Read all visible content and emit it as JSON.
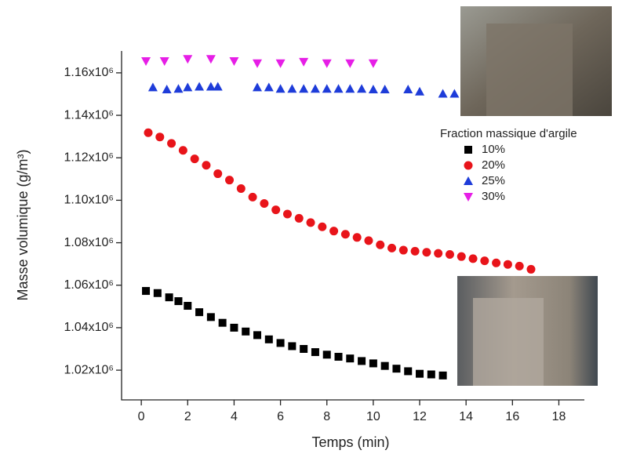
{
  "chart_data": {
    "type": "scatter",
    "xlabel": "Temps (min)",
    "ylabel": "Masse volumique (g/m³)",
    "legend_title": "Fraction massique d'argile",
    "xlim": [
      -0.85,
      19.1
    ],
    "ylim": [
      1006000,
      1170300
    ],
    "xticks": [
      0,
      2,
      4,
      6,
      8,
      10,
      12,
      14,
      16,
      18
    ],
    "yticks": [
      {
        "value": 1020000,
        "label": "1.02x10⁶"
      },
      {
        "value": 1040000,
        "label": "1.04x10⁶"
      },
      {
        "value": 1060000,
        "label": "1.06x10⁶"
      },
      {
        "value": 1080000,
        "label": "1.08x10⁶"
      },
      {
        "value": 1100000,
        "label": "1.10x10⁶"
      },
      {
        "value": 1120000,
        "label": "1.12x10⁶"
      },
      {
        "value": 1140000,
        "label": "1.14x10⁶"
      },
      {
        "value": 1160000,
        "label": "1.16x10⁶"
      }
    ],
    "series": [
      {
        "name": "10%",
        "color": "#000000",
        "marker": "square",
        "x": [
          0.2,
          0.7,
          1.2,
          1.6,
          2.0,
          2.5,
          3.0,
          3.5,
          4.0,
          4.5,
          5.0,
          5.5,
          6.0,
          6.5,
          7.0,
          7.5,
          8.0,
          8.5,
          9.0,
          9.5,
          10.0,
          10.5,
          11.0,
          11.5,
          12.0,
          12.5,
          13.0
        ],
        "values": [
          1057300,
          1056300,
          1054300,
          1052500,
          1050300,
          1047300,
          1045000,
          1042300,
          1040000,
          1038200,
          1036500,
          1034500,
          1032800,
          1031300,
          1030000,
          1028500,
          1027300,
          1026300,
          1025500,
          1024300,
          1023200,
          1022000,
          1020700,
          1019500,
          1018300,
          1018000,
          1017500
        ]
      },
      {
        "name": "20%",
        "color": "#e8141a",
        "marker": "circle",
        "x": [
          0.3,
          0.8,
          1.3,
          1.8,
          2.3,
          2.8,
          3.3,
          3.8,
          4.3,
          4.8,
          5.3,
          5.8,
          6.3,
          6.8,
          7.3,
          7.8,
          8.3,
          8.8,
          9.3,
          9.8,
          10.3,
          10.8,
          11.3,
          11.8,
          12.3,
          12.8,
          13.3,
          13.8,
          14.3,
          14.8,
          15.3,
          15.8,
          16.3,
          16.8
        ],
        "values": [
          1131800,
          1129800,
          1126800,
          1123500,
          1119500,
          1116500,
          1112500,
          1109500,
          1105500,
          1101500,
          1098500,
          1095500,
          1093500,
          1091500,
          1089500,
          1087500,
          1085500,
          1084000,
          1082500,
          1081000,
          1079000,
          1077500,
          1076500,
          1076000,
          1075500,
          1075000,
          1074500,
          1073500,
          1072500,
          1071500,
          1070500,
          1069800,
          1069000,
          1067500
        ]
      },
      {
        "name": "25%",
        "color": "#1e3cd9",
        "marker": "triangle-up",
        "x": [
          0.5,
          1.1,
          1.6,
          2.0,
          2.5,
          3.0,
          3.3,
          5.0,
          5.5,
          6.0,
          6.5,
          7.0,
          7.5,
          8.0,
          8.5,
          9.0,
          9.5,
          10.0,
          10.5,
          11.5,
          12.0,
          13.0,
          13.5
        ],
        "values": [
          1153200,
          1152200,
          1152500,
          1153200,
          1153500,
          1153500,
          1153500,
          1153200,
          1153200,
          1152500,
          1152500,
          1152500,
          1152500,
          1152500,
          1152500,
          1152500,
          1152500,
          1152200,
          1152200,
          1152200,
          1151200,
          1150200,
          1150200
        ]
      },
      {
        "name": "30%",
        "color": "#e61ee6",
        "marker": "triangle-down",
        "x": [
          0.2,
          1.0,
          2.0,
          3.0,
          4.0,
          5.0,
          6.0,
          7.0,
          8.0,
          9.0,
          10.0
        ],
        "values": [
          1165500,
          1165500,
          1166500,
          1166500,
          1165500,
          1164500,
          1164500,
          1165200,
          1164500,
          1164500,
          1164500
        ]
      }
    ]
  }
}
